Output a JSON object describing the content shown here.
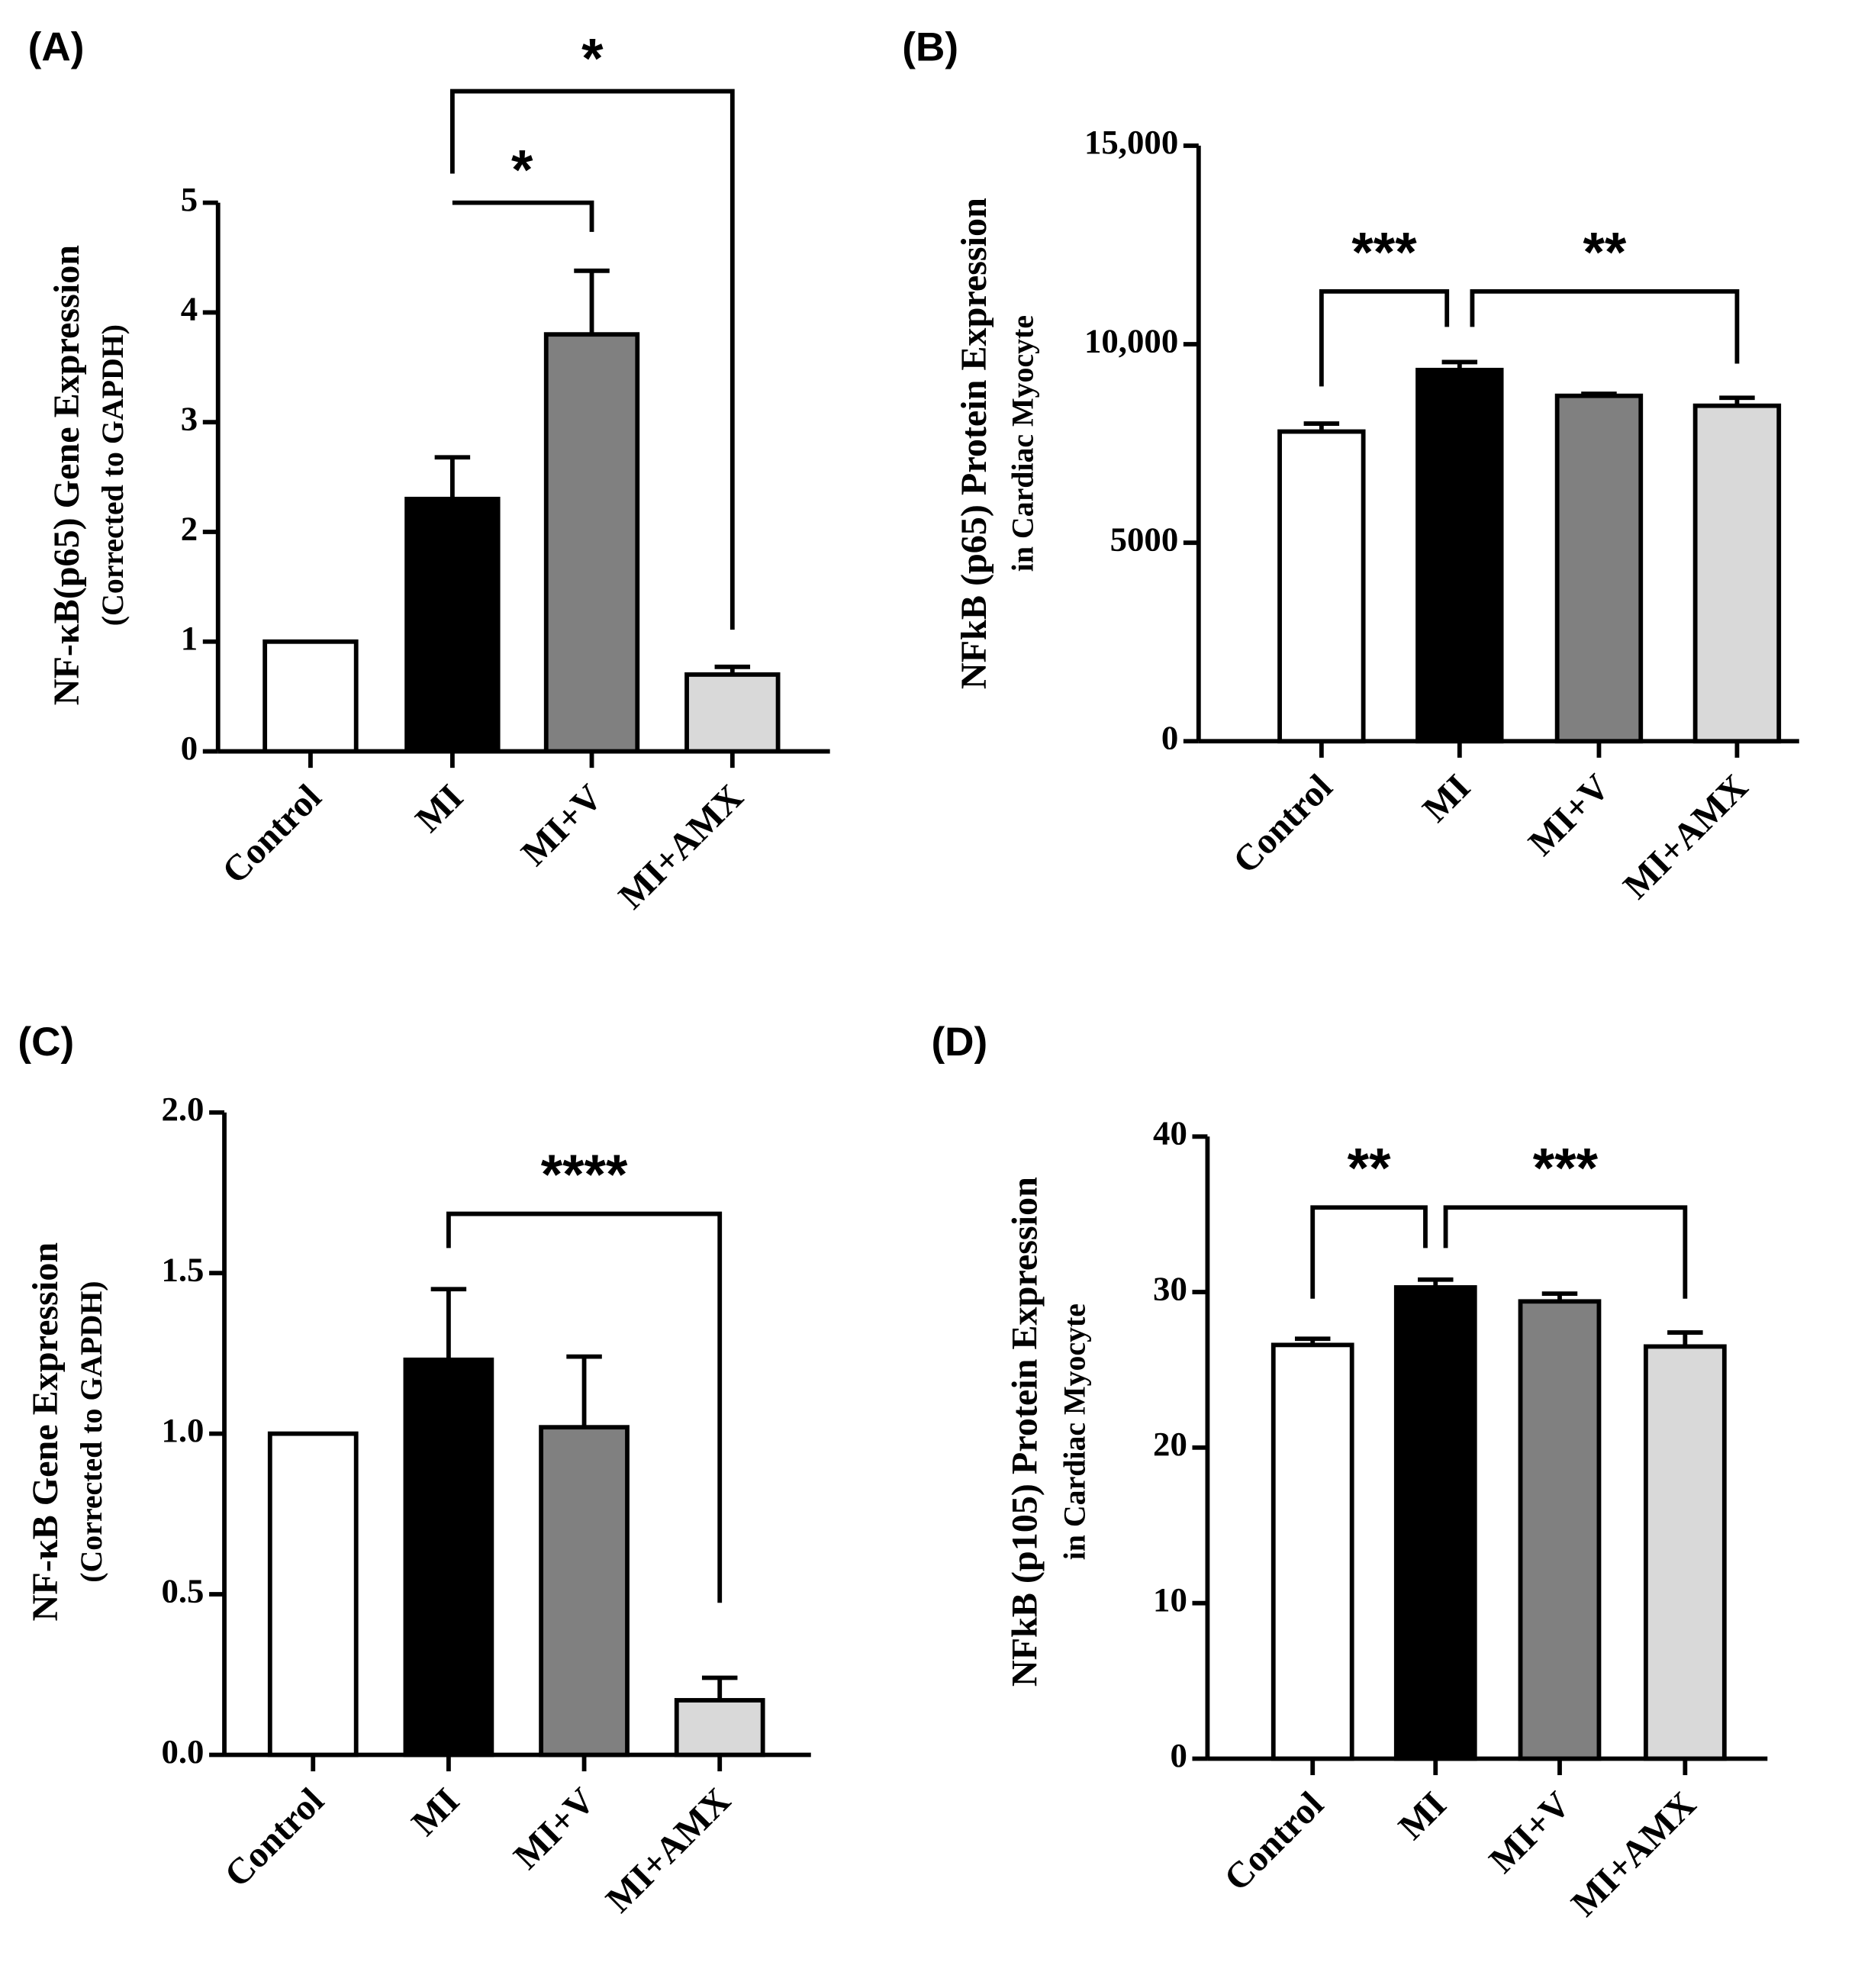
{
  "chart_data": [
    {
      "type": "bar",
      "label": "(A)",
      "ylabel": [
        "NF-κB(p65) Gene Expression",
        "(Corrected to GAPDH)"
      ],
      "categories": [
        "Control",
        "MI",
        "MI+V",
        "MI+AMX"
      ],
      "values": [
        1.0,
        2.3,
        3.8,
        0.7
      ],
      "errors": [
        null,
        0.38,
        0.58,
        0.07
      ],
      "colors": [
        "#ffffff",
        "#000000",
        "#808080",
        "#d9d9d9"
      ],
      "ylim": [
        0,
        5
      ],
      "yticks": [
        0,
        1,
        2,
        3,
        4,
        5
      ],
      "significance": [
        {
          "from": 1,
          "to": 2,
          "label": "*"
        },
        {
          "from": 1,
          "to": 3,
          "label": "*"
        }
      ]
    },
    {
      "type": "bar",
      "label": "(B)",
      "ylabel": [
        "NFkB (p65) Protein Expression",
        "in Cardiac Myocyte"
      ],
      "categories": [
        "Control",
        "MI",
        "MI+V",
        "MI+AMX"
      ],
      "values": [
        7800,
        9350,
        8700,
        8450
      ],
      "errors": [
        200,
        200,
        50,
        200
      ],
      "colors": [
        "#ffffff",
        "#000000",
        "#808080",
        "#d9d9d9"
      ],
      "ylim": [
        0,
        15000
      ],
      "yticks": [
        0,
        5000,
        {
          "value": 10000,
          "label": "10,000"
        },
        {
          "value": 15000,
          "label": "15,000"
        }
      ],
      "significance": [
        {
          "from": 0,
          "to": 1,
          "label": "***"
        },
        {
          "from": 1,
          "to": 3,
          "label": "**"
        }
      ]
    },
    {
      "type": "bar",
      "label": "(C)",
      "ylabel": [
        "NF-κB Gene Expression",
        "(Corrected to GAPDH)"
      ],
      "categories": [
        "Control",
        "MI",
        "MI+V",
        "MI+AMX"
      ],
      "values": [
        1.0,
        1.23,
        1.02,
        0.17
      ],
      "errors": [
        null,
        0.22,
        0.22,
        0.07
      ],
      "colors": [
        "#ffffff",
        "#000000",
        "#808080",
        "#d9d9d9"
      ],
      "ylim": [
        0,
        2
      ],
      "yticks": [
        {
          "value": 0,
          "label": "0.0"
        },
        {
          "value": 0.5,
          "label": "0.5"
        },
        {
          "value": 1,
          "label": "1.0"
        },
        {
          "value": 1.5,
          "label": "1.5"
        },
        {
          "value": 2,
          "label": "2.0"
        }
      ],
      "significance": [
        {
          "from": 1,
          "to": 3,
          "label": "****"
        }
      ]
    },
    {
      "type": "bar",
      "label": "(D)",
      "ylabel": [
        "NFkB (p105) Protein Expression",
        "in Cardiac Myocyte"
      ],
      "categories": [
        "Control",
        "MI",
        "MI+V",
        "MI+AMX"
      ],
      "values": [
        26.6,
        30.3,
        29.4,
        26.5
      ],
      "errors": [
        0.4,
        0.5,
        0.5,
        0.9
      ],
      "colors": [
        "#ffffff",
        "#000000",
        "#808080",
        "#d9d9d9"
      ],
      "ylim": [
        0,
        40
      ],
      "yticks": [
        0,
        10,
        20,
        30,
        40
      ],
      "significance": [
        {
          "from": 0,
          "to": 1,
          "label": "**"
        },
        {
          "from": 1,
          "to": 3,
          "label": "***"
        }
      ]
    }
  ]
}
